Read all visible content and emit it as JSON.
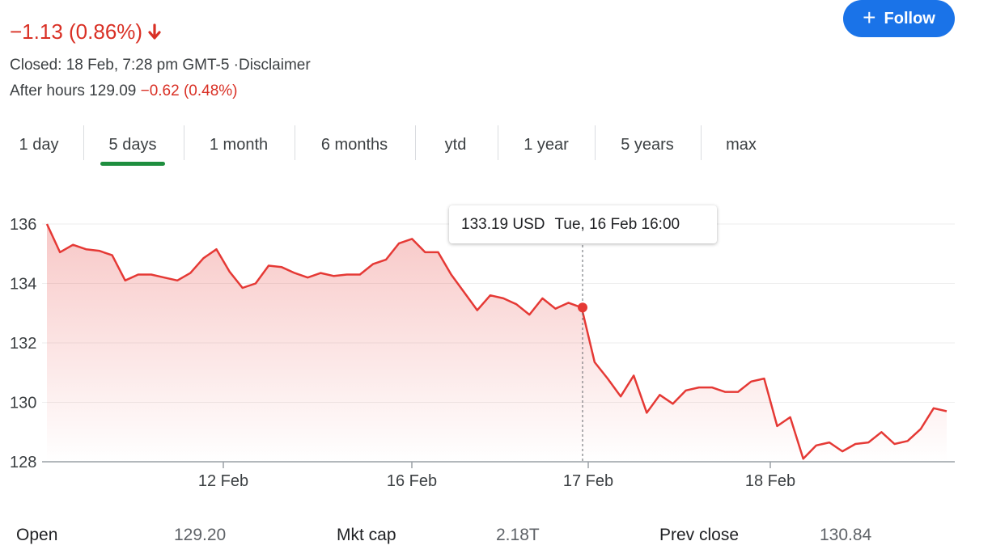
{
  "quote": {
    "change": "−1.13 (0.86%)",
    "closed": "Closed: 18 Feb, 7:28 pm GMT-5 ·Disclaimer",
    "after_hours_label": "After hours 129.09",
    "after_hours_change": "−0.62 (0.48%)"
  },
  "follow_button": {
    "label": "Follow"
  },
  "tabs": [
    "1 day",
    "5 days",
    "1 month",
    "6 months",
    "ytd",
    "1 year",
    "5 years",
    "max"
  ],
  "selected_tab": "5 days",
  "tooltip": {
    "price": "133.19 USD",
    "time": "Tue, 16 Feb 16:00"
  },
  "colors": {
    "line": "#e53935",
    "accent": "#1a73e8",
    "tab_active": "#1e8e3e",
    "negative": "#d93025"
  },
  "chart_data": {
    "type": "area",
    "y_ticks": [
      "136",
      "134",
      "132",
      "130",
      "128"
    ],
    "ylim": [
      128,
      136
    ],
    "x_ticks": [
      "12 Feb",
      "16 Feb",
      "17 Feb",
      "18 Feb"
    ],
    "grid": true,
    "series": [
      {
        "values": [
          136.0,
          135.05,
          135.3,
          135.15,
          135.1,
          134.95,
          134.1,
          134.3,
          134.3,
          134.2,
          134.1,
          134.35,
          134.85,
          135.15,
          134.4,
          133.85,
          134.0,
          134.6,
          134.55,
          134.35,
          134.2,
          134.35,
          134.25,
          134.3,
          134.3,
          134.65,
          134.8,
          135.35,
          135.5,
          135.05,
          135.05,
          134.3,
          133.7,
          133.1,
          133.6,
          133.5,
          133.3,
          132.95,
          133.5,
          133.15,
          133.35,
          133.19,
          131.35,
          130.8,
          130.2,
          130.9,
          129.65,
          130.25,
          129.95,
          130.4,
          130.5,
          130.5,
          130.35,
          130.35,
          130.7,
          130.8,
          129.2,
          129.5,
          128.1,
          128.55,
          128.65,
          128.35,
          128.6,
          128.65,
          129.0,
          128.6,
          128.7,
          129.1,
          129.8,
          129.7
        ]
      }
    ]
  },
  "stats": [
    {
      "label": "Open",
      "value": "129.20"
    },
    {
      "label": "Mkt cap",
      "value": "2.18T"
    },
    {
      "label": "Prev close",
      "value": "130.84"
    }
  ]
}
